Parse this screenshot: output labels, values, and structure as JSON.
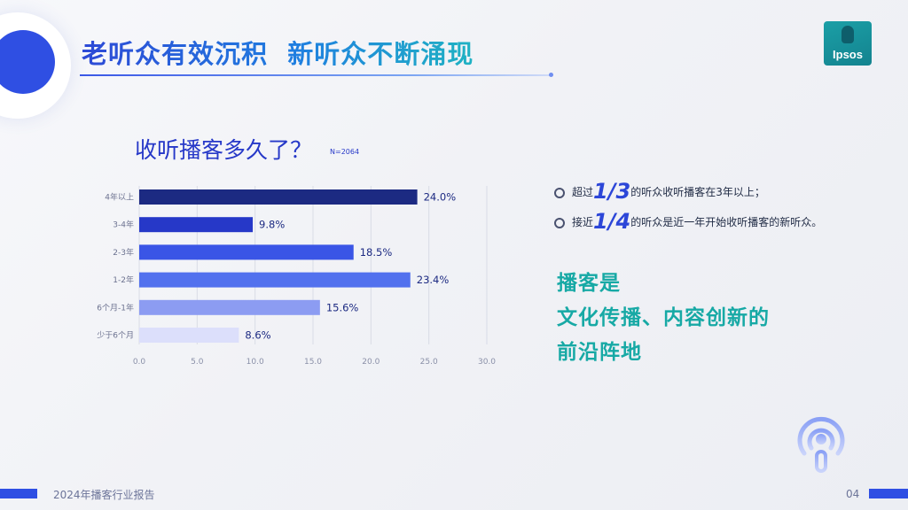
{
  "slide": {
    "title": "老听众有效沉积  新听众不断涌现",
    "question": "收听播客多久了？",
    "sample": "N=2064",
    "logo_text": "Ipsos",
    "footer_text": "2024年播客行业报告",
    "page_number": "04"
  },
  "insights": {
    "bullets": [
      {
        "prefix": "超过",
        "highlight": "1/3",
        "suffix": "的听众收听播客在3年以上；"
      },
      {
        "prefix": "接近",
        "highlight": "1/4",
        "suffix": "的听众是近一年开始收听播客的新听众。"
      }
    ],
    "slogan": [
      "播客是",
      "文化传播、内容创新的",
      "前沿阵地"
    ]
  },
  "chart_data": {
    "type": "bar",
    "orientation": "horizontal",
    "categories": [
      "4年以上",
      "3-4年",
      "2-3年",
      "1-2年",
      "6个月-1年",
      "少于6个月"
    ],
    "values": [
      24.0,
      9.8,
      18.5,
      23.4,
      15.6,
      8.6
    ],
    "value_labels": [
      "24.0%",
      "9.8%",
      "18.5%",
      "23.4%",
      "15.6%",
      "8.6%"
    ],
    "bar_colors": [
      "#1c2a82",
      "#2638c8",
      "#3a55e6",
      "#5271ee",
      "#8c9cf2",
      "#dcdffb"
    ],
    "xlim": [
      0,
      30
    ],
    "xticks": [
      0,
      5,
      10,
      15,
      20,
      25,
      30
    ],
    "xtick_labels": [
      "0.0",
      "5.0",
      "10.0",
      "15.0",
      "20.0",
      "25.0",
      "30.0"
    ],
    "grid": true
  },
  "colors": {
    "accent": "#2f4fe3",
    "teal": "#17a9a5"
  },
  "icons": [
    "podcast-icon"
  ]
}
